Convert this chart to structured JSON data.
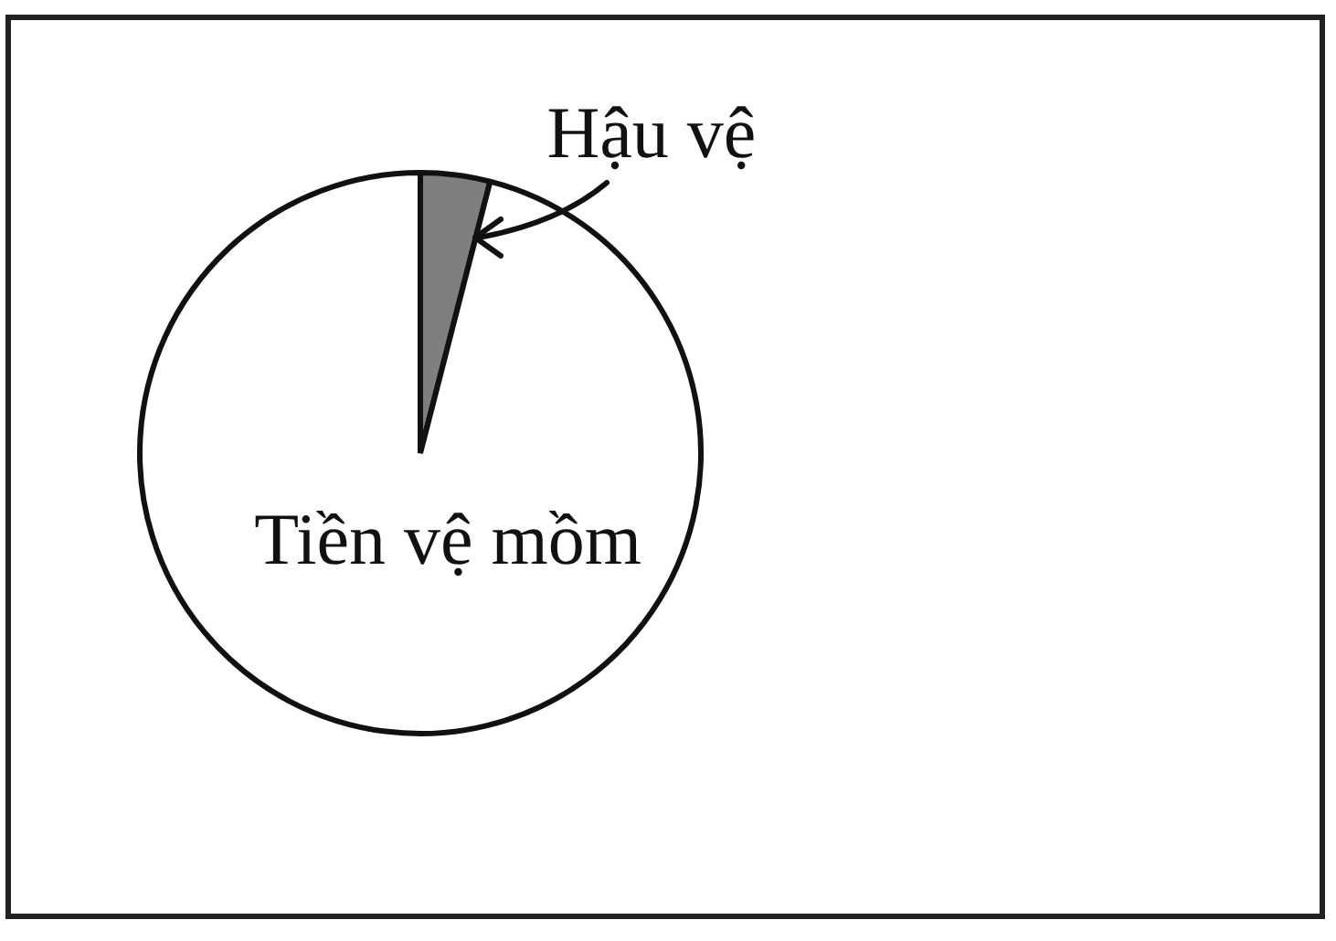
{
  "chart_data": {
    "type": "pie",
    "categories": [
      "Hậu vệ",
      "Tiền vệ mồm"
    ],
    "values": [
      4,
      96
    ],
    "colors": [
      "#7f7f7f",
      "#ffffff"
    ],
    "legend": false
  }
}
